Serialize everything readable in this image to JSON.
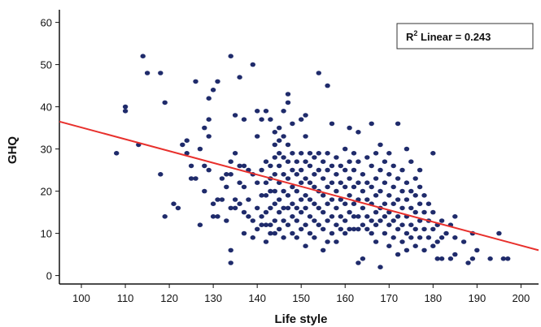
{
  "chart_data": {
    "type": "scatter",
    "xlabel": "Life style",
    "ylabel": "GHQ",
    "xlim": [
      95,
      204
    ],
    "ylim": [
      -2,
      63
    ],
    "x_ticks": [
      100,
      110,
      120,
      130,
      140,
      150,
      160,
      170,
      180,
      190,
      200
    ],
    "y_ticks": [
      0,
      10,
      20,
      30,
      40,
      50,
      60
    ],
    "grid": false,
    "point_color": "#1f2b6b",
    "fit_line": {
      "type": "linear",
      "color": "#e8302c",
      "r2_label_prefix": "R",
      "r2_label_sup": "2",
      "r2_label_suffix": " Linear = 0.243",
      "start": [
        95,
        36.5
      ],
      "end": [
        204,
        6
      ]
    },
    "points": [
      [
        108,
        29
      ],
      [
        110,
        40
      ],
      [
        110,
        39
      ],
      [
        113,
        31
      ],
      [
        114,
        52
      ],
      [
        115,
        48
      ],
      [
        118,
        48
      ],
      [
        118,
        24
      ],
      [
        119,
        14
      ],
      [
        119,
        41
      ],
      [
        121,
        17
      ],
      [
        122,
        16
      ],
      [
        123,
        31
      ],
      [
        124,
        32
      ],
      [
        124,
        29
      ],
      [
        125,
        26
      ],
      [
        125,
        23
      ],
      [
        126,
        46
      ],
      [
        126,
        23
      ],
      [
        127,
        12
      ],
      [
        127,
        30
      ],
      [
        128,
        35
      ],
      [
        128,
        26
      ],
      [
        128,
        20
      ],
      [
        129,
        42
      ],
      [
        129,
        37
      ],
      [
        129,
        33
      ],
      [
        129,
        25
      ],
      [
        130,
        44
      ],
      [
        130,
        17
      ],
      [
        130,
        14
      ],
      [
        131,
        46
      ],
      [
        131,
        18
      ],
      [
        131,
        14
      ],
      [
        132,
        23
      ],
      [
        132,
        18
      ],
      [
        133,
        24
      ],
      [
        133,
        21
      ],
      [
        133,
        13
      ],
      [
        134,
        52
      ],
      [
        134,
        27
      ],
      [
        134,
        24
      ],
      [
        134,
        16
      ],
      [
        134,
        6
      ],
      [
        134,
        3
      ],
      [
        135,
        38
      ],
      [
        135,
        29
      ],
      [
        135,
        18
      ],
      [
        135,
        16
      ],
      [
        136,
        47
      ],
      [
        136,
        26
      ],
      [
        136,
        22
      ],
      [
        136,
        17
      ],
      [
        137,
        37
      ],
      [
        137,
        26
      ],
      [
        137,
        21
      ],
      [
        137,
        15
      ],
      [
        137,
        10
      ],
      [
        138,
        25
      ],
      [
        138,
        18
      ],
      [
        138,
        14
      ],
      [
        139,
        50
      ],
      [
        139,
        24
      ],
      [
        139,
        13
      ],
      [
        139,
        9
      ],
      [
        140,
        39
      ],
      [
        140,
        33
      ],
      [
        140,
        22
      ],
      [
        140,
        16
      ],
      [
        140,
        11
      ],
      [
        141,
        37
      ],
      [
        141,
        25
      ],
      [
        141,
        19
      ],
      [
        141,
        14
      ],
      [
        141,
        12
      ],
      [
        142,
        39
      ],
      [
        142,
        27
      ],
      [
        142,
        22
      ],
      [
        142,
        19
      ],
      [
        142,
        15
      ],
      [
        142,
        12
      ],
      [
        142,
        8
      ],
      [
        143,
        37
      ],
      [
        143,
        26
      ],
      [
        143,
        23
      ],
      [
        143,
        20
      ],
      [
        143,
        16
      ],
      [
        143,
        12
      ],
      [
        143,
        10
      ],
      [
        144,
        34
      ],
      [
        144,
        31
      ],
      [
        144,
        28
      ],
      [
        144,
        24
      ],
      [
        144,
        20
      ],
      [
        144,
        17
      ],
      [
        144,
        13
      ],
      [
        144,
        10
      ],
      [
        145,
        35
      ],
      [
        145,
        32
      ],
      [
        145,
        29
      ],
      [
        145,
        26
      ],
      [
        145,
        22
      ],
      [
        145,
        18
      ],
      [
        145,
        15
      ],
      [
        145,
        11
      ],
      [
        146,
        39
      ],
      [
        146,
        33
      ],
      [
        146,
        28
      ],
      [
        146,
        24
      ],
      [
        146,
        20
      ],
      [
        146,
        16
      ],
      [
        146,
        13
      ],
      [
        146,
        9
      ],
      [
        147,
        43
      ],
      [
        147,
        41
      ],
      [
        147,
        31
      ],
      [
        147,
        27
      ],
      [
        147,
        23
      ],
      [
        147,
        19
      ],
      [
        147,
        16
      ],
      [
        147,
        12
      ],
      [
        148,
        36
      ],
      [
        148,
        29
      ],
      [
        148,
        25
      ],
      [
        148,
        21
      ],
      [
        148,
        17
      ],
      [
        148,
        14
      ],
      [
        148,
        10
      ],
      [
        149,
        27
      ],
      [
        149,
        24
      ],
      [
        149,
        20
      ],
      [
        149,
        16
      ],
      [
        149,
        13
      ],
      [
        149,
        9
      ],
      [
        150,
        37
      ],
      [
        150,
        29
      ],
      [
        150,
        25
      ],
      [
        150,
        22
      ],
      [
        150,
        18
      ],
      [
        150,
        15
      ],
      [
        150,
        11
      ],
      [
        151,
        38
      ],
      [
        151,
        33
      ],
      [
        151,
        27
      ],
      [
        151,
        23
      ],
      [
        151,
        19
      ],
      [
        151,
        16
      ],
      [
        151,
        12
      ],
      [
        151,
        7
      ],
      [
        152,
        29
      ],
      [
        152,
        26
      ],
      [
        152,
        22
      ],
      [
        152,
        18
      ],
      [
        152,
        14
      ],
      [
        152,
        10
      ],
      [
        153,
        28
      ],
      [
        153,
        24
      ],
      [
        153,
        21
      ],
      [
        153,
        17
      ],
      [
        153,
        13
      ],
      [
        153,
        9
      ],
      [
        154,
        48
      ],
      [
        154,
        29
      ],
      [
        154,
        25
      ],
      [
        154,
        20
      ],
      [
        154,
        16
      ],
      [
        154,
        12
      ],
      [
        155,
        27
      ],
      [
        155,
        23
      ],
      [
        155,
        19
      ],
      [
        155,
        15
      ],
      [
        155,
        11
      ],
      [
        155,
        6
      ],
      [
        156,
        45
      ],
      [
        156,
        29
      ],
      [
        156,
        25
      ],
      [
        156,
        21
      ],
      [
        156,
        17
      ],
      [
        156,
        13
      ],
      [
        156,
        8
      ],
      [
        157,
        36
      ],
      [
        157,
        26
      ],
      [
        157,
        22
      ],
      [
        157,
        18
      ],
      [
        157,
        14
      ],
      [
        157,
        10
      ],
      [
        158,
        28
      ],
      [
        158,
        24
      ],
      [
        158,
        20
      ],
      [
        158,
        16
      ],
      [
        158,
        12
      ],
      [
        158,
        8
      ],
      [
        159,
        26
      ],
      [
        159,
        22
      ],
      [
        159,
        18
      ],
      [
        159,
        14
      ],
      [
        159,
        11
      ],
      [
        160,
        30
      ],
      [
        160,
        25
      ],
      [
        160,
        21
      ],
      [
        160,
        17
      ],
      [
        160,
        13
      ],
      [
        160,
        10
      ],
      [
        161,
        35
      ],
      [
        161,
        27
      ],
      [
        161,
        23
      ],
      [
        161,
        19
      ],
      [
        161,
        15
      ],
      [
        161,
        11
      ],
      [
        162,
        29
      ],
      [
        162,
        25
      ],
      [
        162,
        21
      ],
      [
        162,
        17
      ],
      [
        162,
        14
      ],
      [
        162,
        11
      ],
      [
        163,
        34
      ],
      [
        163,
        27
      ],
      [
        163,
        22
      ],
      [
        163,
        18
      ],
      [
        163,
        14
      ],
      [
        163,
        11
      ],
      [
        163,
        3
      ],
      [
        164,
        24
      ],
      [
        164,
        20
      ],
      [
        164,
        16
      ],
      [
        164,
        12
      ],
      [
        164,
        4
      ],
      [
        165,
        28
      ],
      [
        165,
        22
      ],
      [
        165,
        18
      ],
      [
        165,
        14
      ],
      [
        165,
        11
      ],
      [
        166,
        36
      ],
      [
        166,
        26
      ],
      [
        166,
        21
      ],
      [
        166,
        17
      ],
      [
        166,
        13
      ],
      [
        166,
        10
      ],
      [
        167,
        29
      ],
      [
        167,
        23
      ],
      [
        167,
        19
      ],
      [
        167,
        15
      ],
      [
        167,
        12
      ],
      [
        167,
        8
      ],
      [
        168,
        31
      ],
      [
        168,
        25
      ],
      [
        168,
        20
      ],
      [
        168,
        16
      ],
      [
        168,
        13
      ],
      [
        168,
        2
      ],
      [
        169,
        27
      ],
      [
        169,
        22
      ],
      [
        169,
        17
      ],
      [
        169,
        14
      ],
      [
        169,
        10
      ],
      [
        170,
        29
      ],
      [
        170,
        24
      ],
      [
        170,
        19
      ],
      [
        170,
        15
      ],
      [
        170,
        12
      ],
      [
        170,
        7
      ],
      [
        171,
        26
      ],
      [
        171,
        21
      ],
      [
        171,
        17
      ],
      [
        171,
        13
      ],
      [
        171,
        9
      ],
      [
        172,
        36
      ],
      [
        172,
        23
      ],
      [
        172,
        18
      ],
      [
        172,
        14
      ],
      [
        172,
        11
      ],
      [
        172,
        5
      ],
      [
        173,
        25
      ],
      [
        173,
        20
      ],
      [
        173,
        16
      ],
      [
        173,
        12
      ],
      [
        173,
        8
      ],
      [
        174,
        30
      ],
      [
        174,
        22
      ],
      [
        174,
        18
      ],
      [
        174,
        14
      ],
      [
        174,
        10
      ],
      [
        174,
        6
      ],
      [
        175,
        27
      ],
      [
        175,
        20
      ],
      [
        175,
        16
      ],
      [
        175,
        12
      ],
      [
        175,
        9
      ],
      [
        176,
        23
      ],
      [
        176,
        19
      ],
      [
        176,
        15
      ],
      [
        176,
        11
      ],
      [
        176,
        7
      ],
      [
        177,
        25
      ],
      [
        177,
        21
      ],
      [
        177,
        17
      ],
      [
        177,
        13
      ],
      [
        177,
        9
      ],
      [
        178,
        19
      ],
      [
        178,
        15
      ],
      [
        178,
        11
      ],
      [
        178,
        6
      ],
      [
        179,
        17
      ],
      [
        179,
        13
      ],
      [
        179,
        9
      ],
      [
        180,
        29
      ],
      [
        180,
        15
      ],
      [
        180,
        11
      ],
      [
        180,
        7
      ],
      [
        181,
        12
      ],
      [
        181,
        8
      ],
      [
        181,
        4
      ],
      [
        182,
        13
      ],
      [
        182,
        9
      ],
      [
        182,
        4
      ],
      [
        183,
        10
      ],
      [
        184,
        12
      ],
      [
        184,
        4
      ],
      [
        185,
        14
      ],
      [
        185,
        9
      ],
      [
        185,
        5
      ],
      [
        187,
        8
      ],
      [
        188,
        3
      ],
      [
        189,
        10
      ],
      [
        189,
        4
      ],
      [
        190,
        6
      ],
      [
        193,
        4
      ],
      [
        195,
        10
      ],
      [
        196,
        4
      ],
      [
        197,
        4
      ]
    ]
  }
}
